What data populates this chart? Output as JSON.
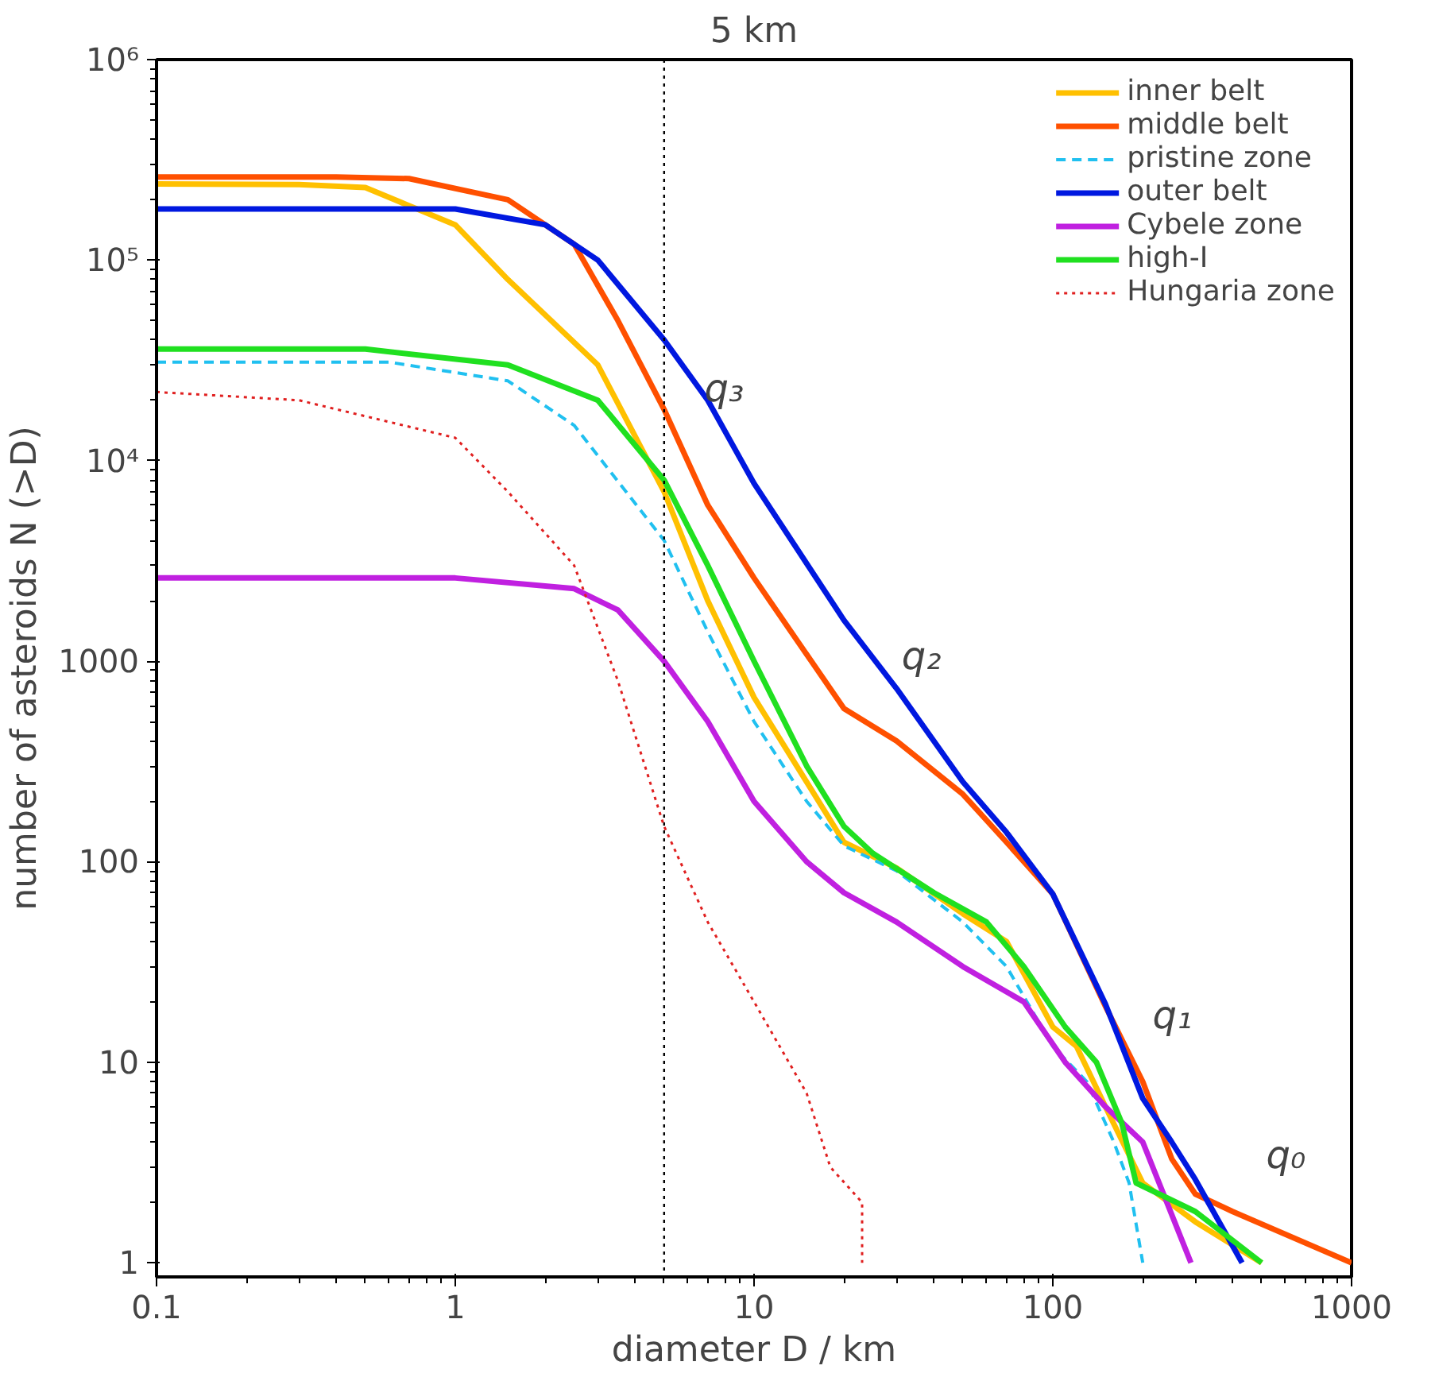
{
  "chart_data": {
    "type": "line",
    "title": "5 km",
    "xlabel": "diameter D / km",
    "ylabel": "number of asteroids N (>D)",
    "log": "xy",
    "xlim": [
      0.1,
      1000
    ],
    "ylim": [
      0.85,
      1000000
    ],
    "xticks": [
      0.1,
      1,
      10,
      100,
      1000
    ],
    "yticks": [
      1,
      10,
      100,
      1000,
      {
        "value": 10000,
        "label": "10⁴"
      },
      {
        "value": 100000,
        "label": "10⁵"
      },
      {
        "value": 1000000,
        "label": "10⁶"
      }
    ],
    "grid": false,
    "legend": "top right",
    "marker": "none",
    "series": [
      {
        "name": "inner belt",
        "color": "#ffc000",
        "line_style": "solid",
        "x": [
          0.1,
          0.3,
          0.5,
          1,
          1.5,
          3,
          5,
          7,
          10,
          15,
          20,
          30,
          50,
          70,
          100,
          120,
          150,
          200,
          300,
          500
        ],
        "values": [
          240000,
          238000,
          230000,
          150000,
          80000,
          30000,
          7000,
          2000,
          660,
          250,
          125,
          93,
          55,
          40,
          15,
          12,
          6,
          2.5,
          1.6,
          1
        ]
      },
      {
        "name": "middle belt",
        "color": "#ff5000",
        "line_style": "solid",
        "x": [
          0.1,
          0.4,
          0.7,
          1.5,
          2.5,
          3.5,
          5,
          7,
          10,
          20,
          30,
          50,
          70,
          100,
          150,
          200,
          250,
          300,
          400,
          1000
        ],
        "values": [
          260000,
          260000,
          255000,
          200000,
          120000,
          50000,
          18000,
          6000,
          2600,
          580,
          400,
          217,
          125,
          69,
          19,
          8,
          3.3,
          2.2,
          1.8,
          1
        ]
      },
      {
        "name": "pristine zone",
        "color": "#20c0f0",
        "line_style": "dashed",
        "x": [
          0.1,
          0.6,
          1.5,
          2.5,
          5,
          7,
          10,
          15,
          20,
          30,
          50,
          70,
          100,
          130,
          160,
          180,
          200
        ],
        "values": [
          31000,
          31000,
          25000,
          15000,
          4000,
          1400,
          500,
          200,
          120,
          90,
          50,
          30,
          12,
          8,
          4,
          2.5,
          1
        ]
      },
      {
        "name": "outer belt",
        "color": "#0018e0",
        "line_style": "solid",
        "x": [
          0.1,
          1,
          2,
          3,
          5,
          7,
          10,
          20,
          30,
          50,
          70,
          100,
          150,
          200,
          250,
          300,
          430
        ],
        "values": [
          180000,
          180000,
          150000,
          100000,
          40000,
          20000,
          7700,
          1600,
          730,
          250,
          140,
          69,
          19.5,
          6.6,
          4,
          2.6,
          1
        ]
      },
      {
        "name": "Cybele zone",
        "color": "#c020e0",
        "line_style": "solid",
        "x": [
          0.1,
          1,
          2.5,
          3.5,
          5,
          7,
          10,
          15,
          20,
          30,
          50,
          80,
          110,
          150,
          200,
          290
        ],
        "values": [
          2600,
          2600,
          2300,
          1800,
          1000,
          500,
          200,
          100,
          70,
          50,
          30,
          20,
          10,
          6,
          4,
          1
        ]
      },
      {
        "name": "high-I",
        "color": "#20e020",
        "line_style": "solid",
        "x": [
          0.1,
          0.5,
          1.5,
          3,
          5,
          7,
          10,
          15,
          20,
          25,
          40,
          60,
          80,
          110,
          140,
          170,
          190,
          300,
          500
        ],
        "values": [
          36000,
          36000,
          30000,
          20000,
          8000,
          3000,
          1000,
          300,
          150,
          110,
          70,
          50,
          30,
          15,
          10,
          5,
          2.5,
          1.8,
          1
        ]
      },
      {
        "name": "Hungaria zone",
        "color": "#e02020",
        "line_style": "dotted",
        "x": [
          0.1,
          0.3,
          1,
          1.5,
          2.5,
          3.5,
          5,
          7,
          10,
          15,
          18,
          23,
          23
        ],
        "values": [
          22000,
          20000,
          13000,
          7000,
          3000,
          800,
          150,
          50,
          20,
          7,
          3,
          2,
          1
        ]
      }
    ],
    "ref_lines": [
      {
        "axis": "x",
        "value": 5,
        "color": "#000000",
        "line_style": "dotted"
      }
    ],
    "annotations": [
      "q₃",
      "q₂",
      "q₁",
      "q₀"
    ]
  }
}
